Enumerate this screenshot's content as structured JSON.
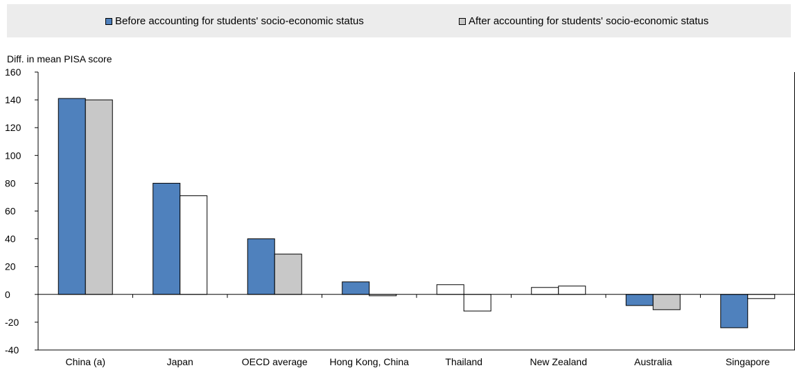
{
  "colors": {
    "series_before": "#4f81bd",
    "series_after": "#c8c8c8",
    "series_after_alt": "#ffffff",
    "legend_bg": "#ececec"
  },
  "chart_data": {
    "type": "bar",
    "categories": [
      "China (a)",
      "Japan",
      "OECD average",
      "Hong Kong, China",
      "Thailand",
      "New Zealand",
      "Australia",
      "Singapore"
    ],
    "series": [
      {
        "name": "Before accounting for students' socio-economic status",
        "values": [
          141,
          80,
          40,
          9,
          7,
          5,
          -8,
          -24
        ],
        "colors": [
          "#4f81bd",
          "#4f81bd",
          "#4f81bd",
          "#4f81bd",
          "#ffffff",
          "#ffffff",
          "#4f81bd",
          "#4f81bd"
        ]
      },
      {
        "name": "After accounting for students' socio-economic status",
        "values": [
          140,
          71,
          29,
          -1,
          -12,
          6,
          -11,
          -3
        ],
        "colors": [
          "#c8c8c8",
          "#ffffff",
          "#c8c8c8",
          "#ffffff",
          "#ffffff",
          "#ffffff",
          "#c8c8c8",
          "#ffffff"
        ]
      }
    ],
    "ylabel": "Diff. in mean PISA score",
    "ylim": [
      -40,
      160
    ],
    "yticks": [
      -40,
      -20,
      0,
      20,
      40,
      60,
      80,
      100,
      120,
      140,
      160
    ],
    "legend_position": "top",
    "grid": false
  }
}
